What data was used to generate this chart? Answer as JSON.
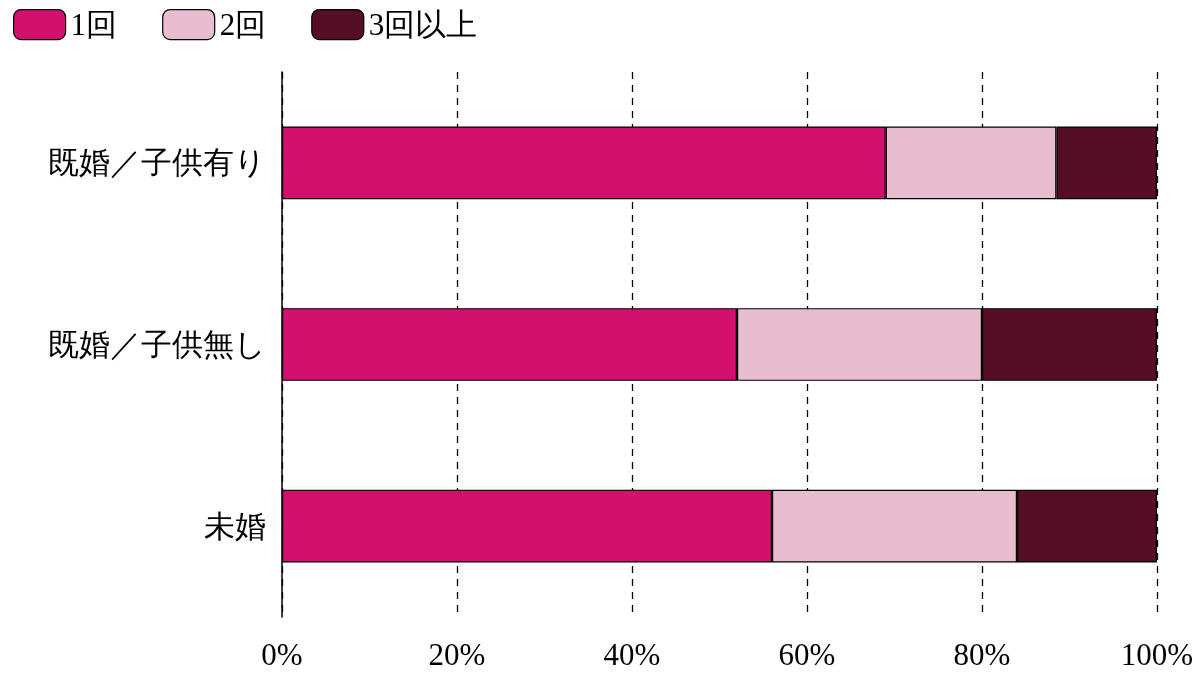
{
  "chart_data": {
    "type": "bar",
    "orientation": "horizontal",
    "stacked": true,
    "categories": [
      "既婚／子供有り",
      "既婚／子供無し",
      "未婚"
    ],
    "series": [
      {
        "name": "1回",
        "color": "#d4106f",
        "values": [
          69,
          52,
          56
        ]
      },
      {
        "name": "2回",
        "color": "#e9bdd0",
        "values": [
          19.5,
          28,
          28
        ]
      },
      {
        "name": "3回以上",
        "color": "#550e25",
        "values": [
          11.5,
          20,
          16
        ]
      }
    ],
    "xlim": [
      0,
      100
    ],
    "xticks": [
      {
        "value": 0,
        "label": "0%"
      },
      {
        "value": 20,
        "label": "20%"
      },
      {
        "value": 40,
        "label": "40%"
      },
      {
        "value": 60,
        "label": "60%"
      },
      {
        "value": 80,
        "label": "80%"
      },
      {
        "value": 100,
        "label": "100%"
      }
    ],
    "grid": "x",
    "legend": "top left"
  }
}
